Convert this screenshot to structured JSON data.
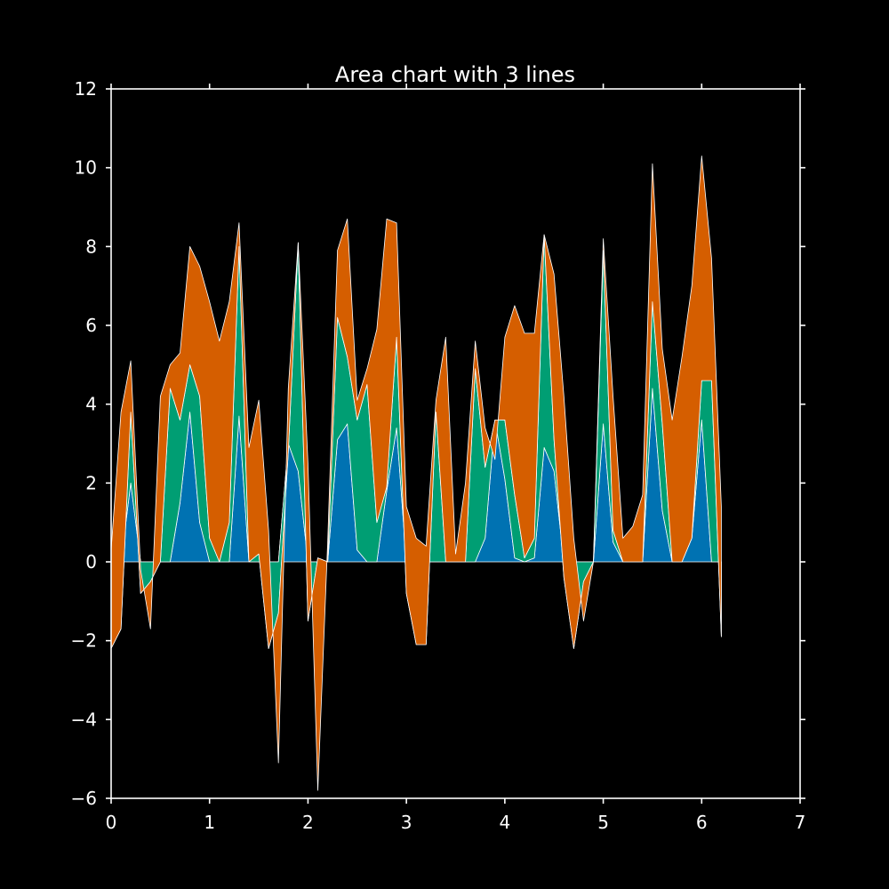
{
  "chart_data": {
    "type": "area",
    "stacked": true,
    "title": "Area chart with 3 lines",
    "xlabel": "",
    "ylabel": "",
    "xlim": [
      0,
      7
    ],
    "ylim": [
      -6,
      12
    ],
    "xticks": [
      "0",
      "1",
      "2",
      "3",
      "4",
      "5",
      "6",
      "7"
    ],
    "yticks": [
      "−6",
      "−4",
      "−2",
      "0",
      "2",
      "4",
      "6",
      "8",
      "10",
      "12"
    ],
    "background": "#000000",
    "axis_color": "#ffffff",
    "outline_color": "#ffffff",
    "grid": false,
    "legend": "none",
    "x": [
      0,
      0.1,
      0.2,
      0.3,
      0.4,
      0.5,
      0.6,
      0.7,
      0.8,
      0.9,
      1.0,
      1.1,
      1.2,
      1.3,
      1.4,
      1.5,
      1.6,
      1.7,
      1.8,
      1.9,
      2.0,
      2.1,
      2.2,
      2.3,
      2.4,
      2.5,
      2.6,
      2.7,
      2.8,
      2.9,
      3.0,
      3.1,
      3.2,
      3.3,
      3.4,
      3.5,
      3.6,
      3.7,
      3.8,
      3.9,
      4.0,
      4.1,
      4.2,
      4.3,
      4.4,
      4.5,
      4.6,
      4.7,
      4.8,
      4.9,
      5.0,
      5.1,
      5.2,
      5.3,
      5.4,
      5.5,
      5.6,
      5.7,
      5.8,
      5.9,
      6.0,
      6.1,
      6.2
    ],
    "series": [
      {
        "color": "#0072B2",
        "values": [
          0,
          0,
          2.0,
          0,
          0,
          0,
          0,
          1.5,
          3.8,
          1.0,
          0,
          0,
          0,
          3.7,
          0,
          0,
          0,
          0,
          3.0,
          2.3,
          0,
          0,
          0,
          3.1,
          3.5,
          0.3,
          0,
          0,
          1.8,
          3.4,
          0,
          0,
          0,
          0,
          0,
          0,
          0,
          0,
          0.6,
          3.6,
          2.1,
          0.1,
          0,
          0.1,
          2.9,
          2.3,
          0,
          0,
          0,
          0,
          3.5,
          0.5,
          0,
          0,
          0,
          4.4,
          1.3,
          0,
          0,
          0.6,
          3.6,
          0,
          0
        ]
      },
      {
        "color": "#009E73",
        "values": [
          -2.2,
          -1.7,
          1.8,
          -0.8,
          -0.5,
          0,
          4.4,
          2.1,
          1.2,
          3.2,
          0.6,
          0,
          1.0,
          4.3,
          0,
          0.2,
          -2.2,
          -1.3,
          -0.2,
          5.8,
          -1.5,
          0.1,
          0,
          3.1,
          1.7,
          3.3,
          4.5,
          1.0,
          0.1,
          2.3,
          -0.8,
          -2.1,
          -2.1,
          3.8,
          0,
          0,
          0,
          4.9,
          1.8,
          0,
          1.5,
          1.6,
          0.1,
          0.5,
          5.4,
          0.8,
          -0.4,
          -2.2,
          -0.5,
          0,
          4.4,
          0.3,
          0,
          0,
          0,
          2.2,
          2.2,
          0,
          0,
          0,
          1.0,
          4.6,
          -1.9
        ]
      },
      {
        "color": "#D55E00",
        "values": [
          2.5,
          5.5,
          1.3,
          0.6,
          -1.2,
          4.2,
          0.6,
          1.7,
          3.0,
          3.3,
          6.0,
          5.6,
          5.6,
          0.6,
          2.9,
          3.9,
          3.0,
          -3.8,
          1.6,
          0,
          4.0,
          -5.9,
          0.5,
          1.7,
          3.5,
          0.5,
          0.4,
          4.9,
          6.8,
          2.9,
          2.2,
          2.7,
          2.5,
          0.3,
          5.7,
          0.2,
          2.0,
          0.7,
          1.0,
          -1.0,
          2.1,
          4.8,
          5.7,
          5.2,
          0,
          4.2,
          4.6,
          2.8,
          -1.0,
          0,
          0.3,
          3.4,
          0.6,
          0.9,
          1.7,
          3.5,
          1.9,
          3.6,
          5.2,
          6.4,
          5.7,
          3.1,
          3.3
        ]
      }
    ]
  }
}
